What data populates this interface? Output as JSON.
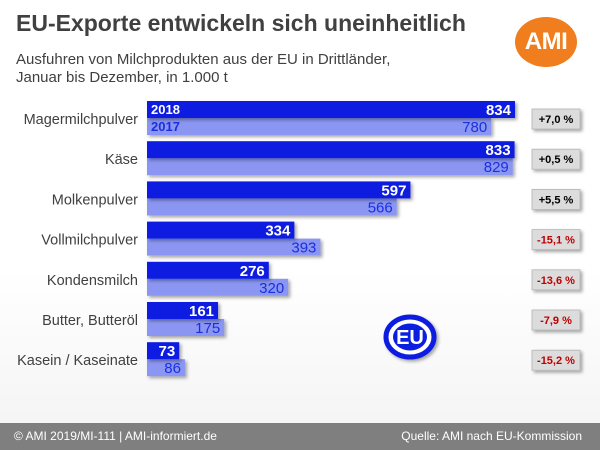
{
  "header": {
    "title": "EU-Exporte entwickeln sich uneinheitlich",
    "subtitle_line1": "Ausfuhren von Milchprodukten aus der EU in Drittländer,",
    "subtitle_line2": "Januar bis Dezember, in 1.000 t",
    "logo_text": "AMI",
    "logo_color": "#f07d1e"
  },
  "eu_logo_text": "EU",
  "footer": {
    "left": "© AMI 2019/MI-111 | AMI-informiert.de",
    "right": "Quelle: AMI nach EU-Kommission"
  },
  "chart_data": {
    "type": "bar",
    "orientation": "horizontal",
    "categories": [
      "Magermilchpulver",
      "Käse",
      "Molkenpulver",
      "Vollmilchpulver",
      "Kondensmilch",
      "Butter, Butteröl",
      "Kasein / Kaseinate"
    ],
    "series": [
      {
        "name": "2018",
        "values": [
          834,
          833,
          597,
          334,
          276,
          161,
          73
        ],
        "color": "#0a1fe0"
      },
      {
        "name": "2017",
        "values": [
          780,
          829,
          566,
          393,
          320,
          175,
          86
        ],
        "color": "#8a96f2"
      }
    ],
    "changes": [
      "+7,0 %",
      "+0,5 %",
      "+5,5 %",
      "-15,1 %",
      "-13,6 %",
      "-7,9 %",
      "-15,2 %"
    ],
    "change_colors": {
      "positive": "#000000",
      "negative": "#c00000"
    },
    "xlim": [
      0,
      834
    ]
  }
}
